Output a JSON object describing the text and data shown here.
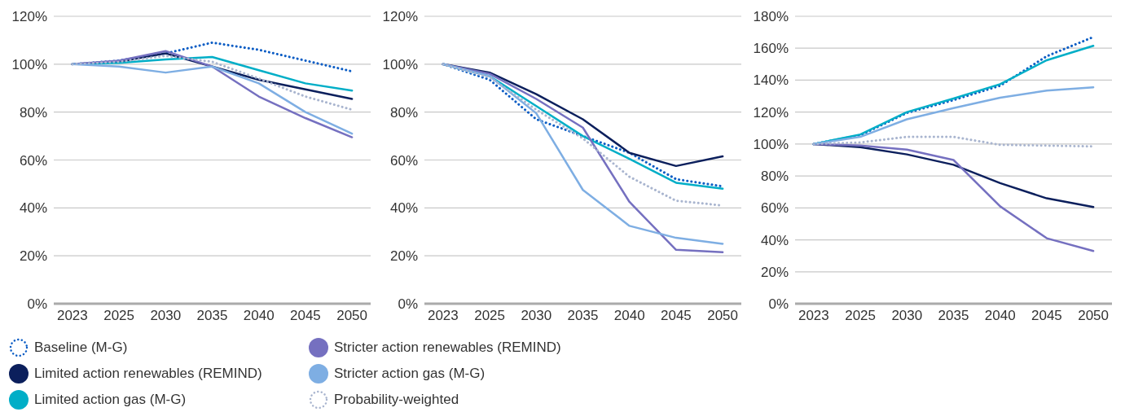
{
  "chart_data": [
    {
      "type": "line",
      "categories": [
        "2023",
        "2025",
        "2030",
        "2035",
        "2040",
        "2045",
        "2050"
      ],
      "ylim": [
        0,
        120
      ],
      "yticks": [
        {
          "value": 0,
          "label": "0%"
        },
        {
          "value": 20,
          "label": "20%"
        },
        {
          "value": 40,
          "label": "40%"
        },
        {
          "value": 60,
          "label": "60%"
        },
        {
          "value": 80,
          "label": "80%"
        },
        {
          "value": 100,
          "label": "100%"
        },
        {
          "value": 120,
          "label": "120%"
        }
      ],
      "grid": "y",
      "marker": "none",
      "legend": "bottom",
      "series": [
        {
          "name": "Baseline (M-G)",
          "color": "#0a5cc4",
          "line_style": "dotted",
          "values": [
            100,
            101.5,
            104.5,
            109,
            106,
            101.5,
            97
          ]
        },
        {
          "name": "Limited action renewables (REMIND)",
          "color": "#0b1f5c",
          "line_style": "solid",
          "values": [
            100,
            101,
            104.5,
            99,
            93.5,
            89.5,
            85.5
          ]
        },
        {
          "name": "Limited action gas (M-G)",
          "color": "#00aec7",
          "line_style": "solid",
          "values": [
            100,
            100.5,
            102,
            103,
            97.5,
            92,
            89
          ]
        },
        {
          "name": "Stricter action renewables (REMIND)",
          "color": "#7570c0",
          "line_style": "solid",
          "values": [
            100,
            101.5,
            105.5,
            99,
            86.5,
            77.5,
            69.5
          ]
        },
        {
          "name": "Stricter action gas (M-G)",
          "color": "#7eaee3",
          "line_style": "solid",
          "values": [
            100,
            99,
            96.5,
            99,
            92,
            80,
            71
          ]
        },
        {
          "name": "Probability-weighted",
          "color": "#a9b5cf",
          "line_style": "dotted",
          "values": [
            100,
            101,
            103.5,
            101,
            94,
            86.5,
            81
          ]
        }
      ]
    },
    {
      "type": "line",
      "categories": [
        "2023",
        "2025",
        "2030",
        "2035",
        "2040",
        "2045",
        "2050"
      ],
      "ylim": [
        0,
        120
      ],
      "yticks": [
        {
          "value": 0,
          "label": "0%"
        },
        {
          "value": 20,
          "label": "20%"
        },
        {
          "value": 40,
          "label": "40%"
        },
        {
          "value": 60,
          "label": "60%"
        },
        {
          "value": 80,
          "label": "80%"
        },
        {
          "value": 100,
          "label": "100%"
        },
        {
          "value": 120,
          "label": "120%"
        }
      ],
      "grid": "y",
      "marker": "none",
      "series": [
        {
          "color": "#0a5cc4",
          "line_style": "dotted",
          "values": [
            100,
            93.5,
            77,
            70,
            63,
            52,
            49
          ]
        },
        {
          "color": "#0b1f5c",
          "line_style": "solid",
          "values": [
            100,
            96.5,
            87.5,
            77,
            63,
            57.5,
            61.5
          ]
        },
        {
          "color": "#00aec7",
          "line_style": "solid",
          "values": [
            100,
            95,
            82.5,
            70,
            60.5,
            50.5,
            48
          ]
        },
        {
          "color": "#7570c0",
          "line_style": "solid",
          "values": [
            100,
            96,
            85.5,
            73.5,
            42.5,
            22.5,
            21.5
          ]
        },
        {
          "color": "#7eaee3",
          "line_style": "solid",
          "values": [
            100,
            95,
            79.5,
            47.5,
            32.5,
            27.5,
            25
          ]
        },
        {
          "color": "#a9b5cf",
          "line_style": "dotted",
          "values": [
            100,
            94.5,
            81,
            69,
            53,
            43,
            41
          ]
        }
      ]
    },
    {
      "type": "line",
      "categories": [
        "2023",
        "2025",
        "2030",
        "2035",
        "2040",
        "2045",
        "2050"
      ],
      "ylim": [
        0,
        180
      ],
      "yticks": [
        {
          "value": 0,
          "label": "0%"
        },
        {
          "value": 20,
          "label": "20%"
        },
        {
          "value": 40,
          "label": "40%"
        },
        {
          "value": 60,
          "label": "60%"
        },
        {
          "value": 80,
          "label": "80%"
        },
        {
          "value": 100,
          "label": "100%"
        },
        {
          "value": 120,
          "label": "120%"
        },
        {
          "value": 140,
          "label": "140%"
        },
        {
          "value": 160,
          "label": "160%"
        },
        {
          "value": 180,
          "label": "180%"
        }
      ],
      "grid": "y",
      "marker": "none",
      "series": [
        {
          "color": "#0a5cc4",
          "line_style": "dotted",
          "values": [
            100,
            105.5,
            119.5,
            127.5,
            136.5,
            155,
            167
          ]
        },
        {
          "color": "#0b1f5c",
          "line_style": "solid",
          "values": [
            100,
            98,
            93.5,
            87,
            75.5,
            66,
            60.5
          ]
        },
        {
          "color": "#00aec7",
          "line_style": "solid",
          "values": [
            100,
            106,
            120,
            128.5,
            137.5,
            152.5,
            161.5
          ]
        },
        {
          "color": "#7570c0",
          "line_style": "solid",
          "values": [
            100,
            99,
            96.5,
            90,
            61,
            41,
            33
          ]
        },
        {
          "color": "#7eaee3",
          "line_style": "solid",
          "values": [
            100,
            104.5,
            115.5,
            122.5,
            129,
            133.5,
            135.5
          ]
        },
        {
          "color": "#a9b5cf",
          "line_style": "dotted",
          "values": [
            100,
            101,
            104.5,
            104.5,
            99.5,
            99,
            98.5
          ]
        }
      ]
    }
  ]
}
